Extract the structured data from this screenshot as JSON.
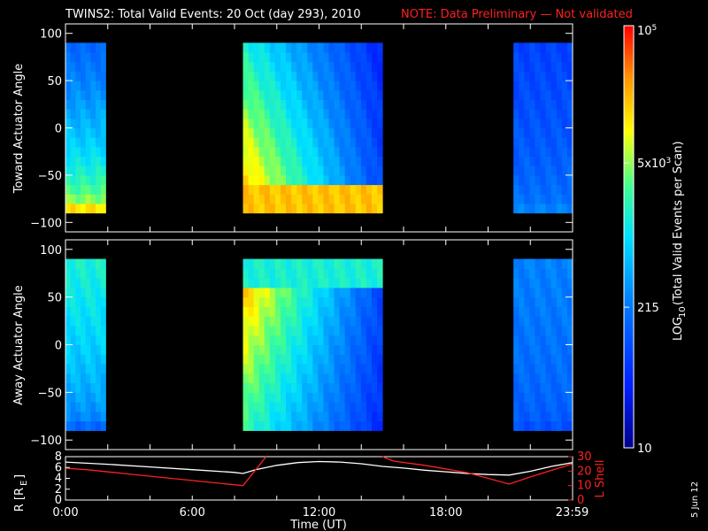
{
  "header": {
    "title": "TWINS2: Total Valid Events: 20 Oct (day 293), 2010",
    "note": "NOTE: Data Preliminary — Not validated",
    "note_color": "#ff2020"
  },
  "stamp": "5 Jun 12",
  "colorbar": {
    "label_main": "LOG",
    "label_sub": "10",
    "label_rest": "(Total Valid Events per Scan)",
    "ticks": [
      {
        "value": 10,
        "label": "10"
      },
      {
        "value": 215,
        "label": "215"
      },
      {
        "value": 5000,
        "base": "5x10",
        "exp": "3"
      },
      {
        "value": 100000,
        "base": "10",
        "exp": "5"
      }
    ],
    "range": [
      10,
      100000
    ],
    "scale": "log"
  },
  "chart_data": [
    {
      "type": "heatmap",
      "ylabel": "Toward Actuator Angle",
      "ylim": [
        -110,
        110
      ],
      "yticks": [
        "100",
        "50",
        "0",
        "−50",
        "−100"
      ],
      "ytick_values": [
        100,
        50,
        0,
        -50,
        -100
      ],
      "angle_range": [
        -90,
        90
      ],
      "segments": [
        {
          "start_hour": 0.0,
          "end_hour": 1.9,
          "low_angle_intensity": 0.78,
          "high_angle_intensity": 0.3
        },
        {
          "start_hour": 8.4,
          "end_hour": 15.0,
          "low_angle_intensity": 0.82,
          "high_angle_intensity": 0.45
        },
        {
          "start_hour": 21.2,
          "end_hour": 24.0,
          "low_angle_intensity": 0.35,
          "high_angle_intensity": 0.22
        }
      ]
    },
    {
      "type": "heatmap",
      "ylabel": "Away Actuator Angle",
      "ylim": [
        -110,
        110
      ],
      "yticks": [
        "100",
        "50",
        "0",
        "−50",
        "−100"
      ],
      "ytick_values": [
        100,
        50,
        0,
        -50,
        -100
      ],
      "angle_range": [
        -90,
        90
      ],
      "segments": [
        {
          "start_hour": 0.0,
          "end_hour": 1.9,
          "low_angle_intensity": 0.3,
          "high_angle_intensity": 0.55
        },
        {
          "start_hour": 8.4,
          "end_hour": 15.0,
          "low_angle_intensity": 0.3,
          "high_angle_intensity": 0.6
        },
        {
          "start_hour": 21.2,
          "end_hour": 24.0,
          "low_angle_intensity": 0.25,
          "high_angle_intensity": 0.35
        }
      ]
    },
    {
      "type": "line",
      "ylabel": "R [R",
      "ylabel_sub": "E",
      "ylabel_end": "]",
      "y2label": "L Shell",
      "ylim": [
        0,
        8
      ],
      "y2lim": [
        0,
        30
      ],
      "yticks": [
        "8",
        "6",
        "4",
        "2",
        "0"
      ],
      "y2ticks": [
        "30",
        "20",
        "10",
        "0"
      ],
      "xlabel": "Time (UT)",
      "xticks": [
        "0:00",
        "6:00",
        "12:00",
        "18:00",
        "23:59"
      ],
      "xtick_hours": [
        0,
        6,
        12,
        18,
        23.98
      ],
      "series": [
        {
          "color": "#ffffff",
          "x": [
            0,
            2,
            4,
            6,
            8,
            8.4,
            9,
            10,
            11,
            12,
            13,
            14,
            15,
            16,
            17,
            18,
            19,
            20,
            21,
            22,
            23,
            24
          ],
          "y": [
            7.0,
            6.6,
            6.1,
            5.6,
            5.1,
            4.9,
            5.6,
            6.4,
            6.9,
            7.1,
            7.0,
            6.7,
            6.2,
            5.9,
            5.5,
            5.2,
            4.9,
            4.7,
            4.6,
            5.3,
            6.2,
            6.9
          ]
        },
        {
          "color": "#ff2020",
          "axis": "right",
          "segments": [
            {
              "x": [
                0,
                1,
                3,
                5,
                7,
                8.4
              ],
              "y": [
                22,
                21,
                18,
                15,
                12,
                10
              ]
            },
            {
              "x": [
                8.4,
                9.5
              ],
              "y": [
                10,
                30
              ]
            },
            {
              "x": [
                15.0,
                15.5,
                17,
                19,
                21,
                22,
                23.98
              ],
              "y": [
                30,
                27,
                24,
                19,
                11,
                16,
                25
              ]
            }
          ]
        }
      ]
    }
  ]
}
